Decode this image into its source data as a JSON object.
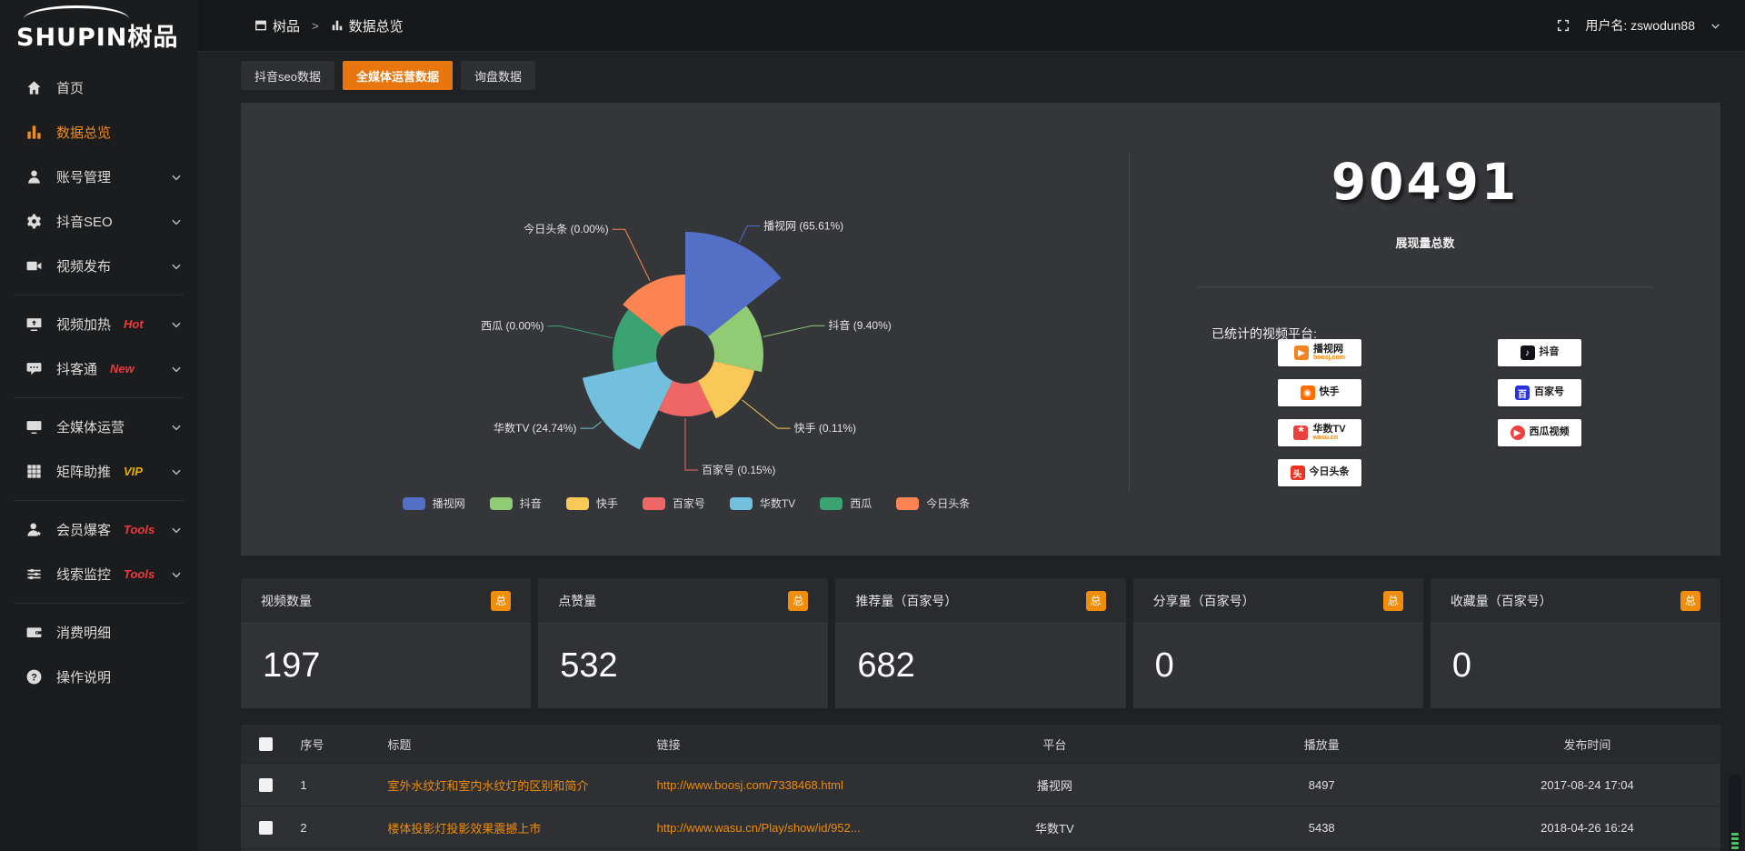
{
  "logo": {
    "brand": "SHUPIN",
    "brand_cn": "树品"
  },
  "topbar": {
    "breadcrumb": [
      {
        "key": "shupin",
        "icon": "window-icon",
        "label": "树品"
      },
      {
        "key": "data-overview",
        "icon": "bar-chart-icon",
        "label": "数据总览"
      }
    ],
    "separator": ">",
    "user_prefix": "用户名:",
    "username": "zswodun88"
  },
  "sidebar": {
    "sections": [
      [
        {
          "key": "home",
          "icon": "home-icon",
          "label": "首页"
        },
        {
          "key": "data-overview",
          "icon": "bar-chart-icon",
          "label": "数据总览",
          "active": true
        },
        {
          "key": "account-management",
          "icon": "user-icon",
          "label": "账号管理",
          "chevron": true
        },
        {
          "key": "douyin-seo",
          "icon": "gear-icon",
          "label": "抖音SEO",
          "chevron": true
        },
        {
          "key": "video-publish",
          "icon": "video-icon",
          "label": "视频发布",
          "chevron": true
        }
      ],
      [
        {
          "key": "video-heat",
          "icon": "screen-share-icon",
          "label": "视频加热",
          "tag": "Hot",
          "tag_color": "#f0383f",
          "chevron": true
        },
        {
          "key": "douketong",
          "icon": "chat-icon",
          "label": "抖客通",
          "tag": "New",
          "tag_color": "#f0383f",
          "chevron": true
        }
      ],
      [
        {
          "key": "media-operation",
          "icon": "monitor-icon",
          "label": "全媒体运营",
          "chevron": true
        },
        {
          "key": "matrix-boost",
          "icon": "grid-icon",
          "label": "矩阵助推",
          "tag": "VIP",
          "tag_color": "#e8b004",
          "chevron": true
        }
      ],
      [
        {
          "key": "member-baoke",
          "icon": "user-star-icon",
          "label": "会员爆客",
          "tag": "Tools",
          "tag_color": "#f0383f",
          "chevron": true
        },
        {
          "key": "lead-monitor",
          "icon": "sliders-icon",
          "label": "线索监控",
          "tag": "Tools",
          "tag_color": "#f0383f",
          "chevron": true
        }
      ],
      [
        {
          "key": "consume-detail",
          "icon": "wallet-icon",
          "label": "消费明细"
        },
        {
          "key": "operation-guide",
          "icon": "help-icon",
          "label": "操作说明"
        }
      ]
    ]
  },
  "tabs": [
    {
      "key": "douyin-seo-data",
      "label": "抖音seo数据",
      "active": false
    },
    {
      "key": "media-operation-data",
      "label": "全媒体运营数据",
      "active": true
    },
    {
      "key": "inquiry-data",
      "label": "询盘数据",
      "active": false
    }
  ],
  "chart_data": {
    "type": "pie",
    "subtype": "nightingale-rose-donut",
    "label_format": "{name} ({value}%)",
    "legend_position": "bottom",
    "slices": [
      {
        "name": "播视网",
        "value": 65.61,
        "color": "#5470c6"
      },
      {
        "name": "抖音",
        "value": 9.4,
        "color": "#91cc75"
      },
      {
        "name": "快手",
        "value": 0.11,
        "color": "#fac858"
      },
      {
        "name": "百家号",
        "value": 0.15,
        "color": "#ee6666"
      },
      {
        "name": "华数TV",
        "value": 24.74,
        "color": "#73c0de"
      },
      {
        "name": "西瓜",
        "value": 0.0,
        "color": "#3ba272"
      },
      {
        "name": "今日头条",
        "value": 0.0,
        "color": "#fc8452"
      }
    ]
  },
  "summary": {
    "total": "90491",
    "total_caption": "展现量总数",
    "platforms_caption": "已统计的视频平台:",
    "platform_columns": [
      [
        {
          "key": "boosj",
          "name": "播视网",
          "sub": "boosj.com",
          "logo": "boosj-logo",
          "color": "#f58220"
        },
        {
          "key": "kuaishou",
          "name": "快手",
          "logo": "kuaishou-logo",
          "color": "#ff6f00"
        },
        {
          "key": "wasu",
          "name": "华数TV",
          "sub": "wasu.cn",
          "logo": "wasu-logo",
          "color": "#e8433e"
        },
        {
          "key": "toutiao",
          "name": "今日头条",
          "logo": "toutiao-logo",
          "color": "#ed3321"
        }
      ],
      [
        {
          "key": "douyin",
          "name": "抖音",
          "logo": "douyin-logo",
          "color": "#141019"
        },
        {
          "key": "baijiahao",
          "name": "百家号",
          "logo": "baijiahao-logo",
          "color": "#2932e1"
        },
        {
          "key": "xigua",
          "name": "西瓜视频",
          "logo": "xigua-logo",
          "color": "#f04142"
        }
      ]
    ]
  },
  "stat_cards": [
    {
      "key": "video-count",
      "label": "视频数量",
      "badge": "总",
      "value": "197"
    },
    {
      "key": "like-count",
      "label": "点赞量",
      "badge": "总",
      "value": "532"
    },
    {
      "key": "recommend-count",
      "label": "推荐量（百家号）",
      "badge": "总",
      "value": "682"
    },
    {
      "key": "share-count",
      "label": "分享量（百家号）",
      "badge": "总",
      "value": "0"
    },
    {
      "key": "favorite-count",
      "label": "收藏量（百家号）",
      "badge": "总",
      "value": "0"
    }
  ],
  "table": {
    "headers": [
      "序号",
      "标题",
      "链接",
      "平台",
      "播放量",
      "发布时间"
    ],
    "rows": [
      {
        "index": "1",
        "title": "室外水纹灯和室内水纹灯的区别和简介",
        "link": "http://www.boosj.com/7338468.html",
        "platform": "播视网",
        "plays": "8497",
        "time": "2017-08-24 17:04"
      },
      {
        "index": "2",
        "title": "楼体投影灯投影效果震撼上市",
        "link": "http://www.wasu.cn/Play/show/id/952...",
        "platform": "华数TV",
        "plays": "5438",
        "time": "2018-04-26 16:24"
      }
    ]
  },
  "colors": {
    "accent_orange": "#e8760e",
    "link_orange": "#ef8b0e",
    "tag_red": "#f0383f",
    "tag_yellow": "#e8b004"
  }
}
